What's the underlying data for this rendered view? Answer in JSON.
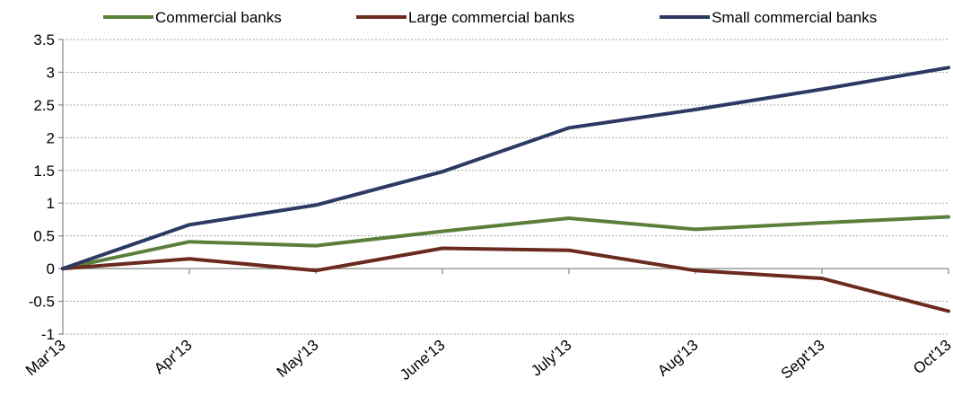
{
  "chart_data": {
    "type": "line",
    "title": "",
    "xlabel": "",
    "ylabel": "",
    "categories": [
      "Mar'13",
      "Apr'13",
      "May'13",
      "June'13",
      "July'13",
      "Aug'13",
      "Sept'13",
      "Oct'13"
    ],
    "ylim": [
      -1,
      3.5
    ],
    "yticks": [
      "3.5",
      "3",
      "2.5",
      "2",
      "1.5",
      "1",
      "0.5",
      "0",
      "-0.5",
      "-1"
    ],
    "grid": true,
    "legend_position": "top",
    "series": [
      {
        "name": "Commercial banks",
        "color": "#5b7f3a",
        "values": [
          0,
          0.41,
          0.35,
          0.57,
          0.77,
          0.6,
          0.7,
          0.79
        ]
      },
      {
        "name": "Large commercial banks",
        "color": "#6b2a1e",
        "values": [
          0,
          0.15,
          -0.03,
          0.31,
          0.28,
          -0.03,
          -0.15,
          -0.65
        ]
      },
      {
        "name": "Small commercial banks",
        "color": "#2c3a63",
        "values": [
          0,
          0.67,
          0.97,
          1.48,
          2.15,
          2.43,
          2.74,
          3.07
        ]
      }
    ]
  }
}
